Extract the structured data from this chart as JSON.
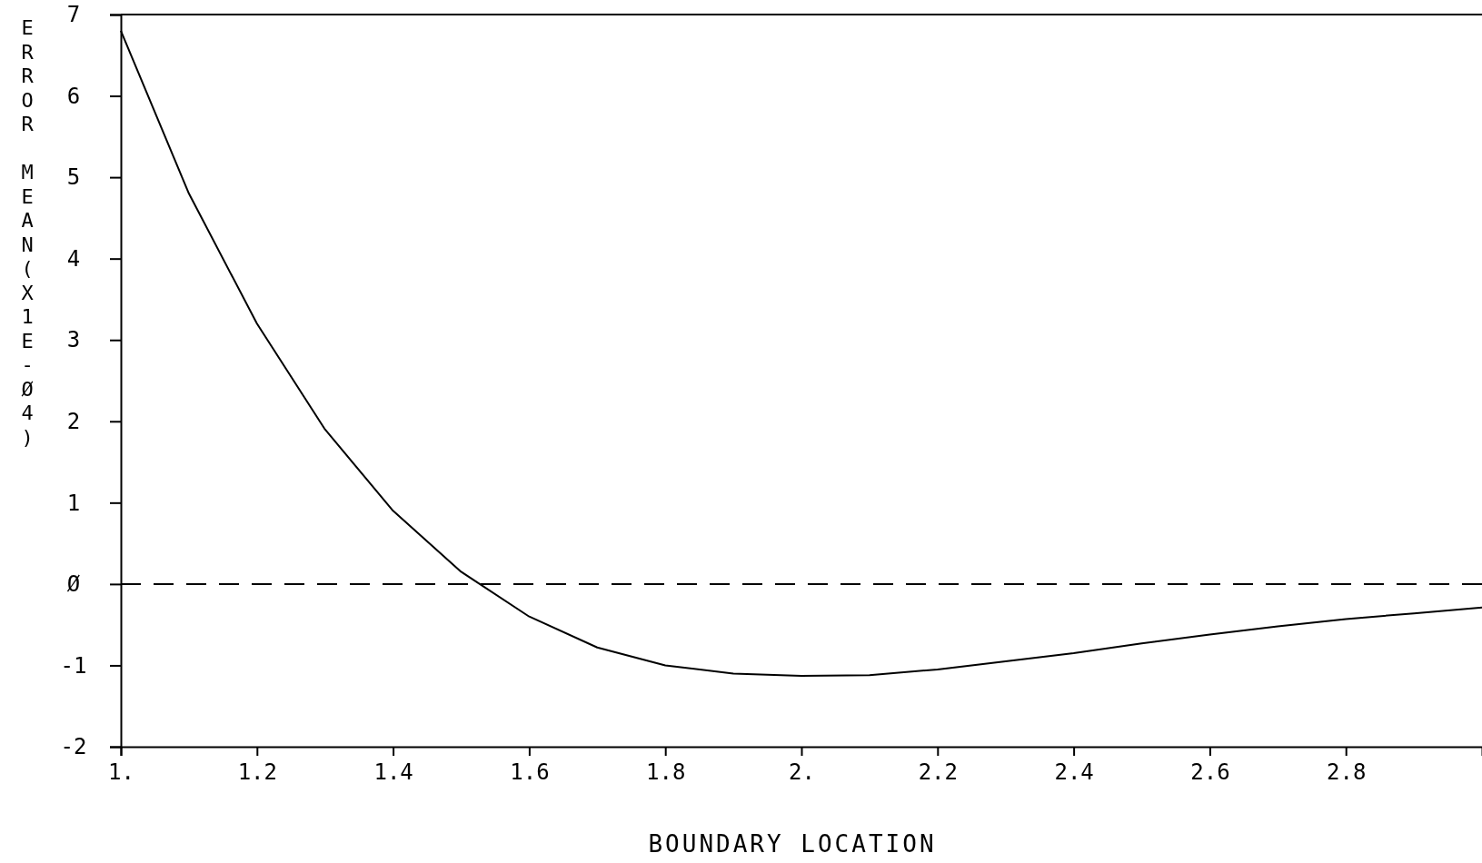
{
  "chart_data": {
    "type": "line",
    "xlabel": "BOUNDARY LOCATION",
    "ylabel": "ERROR MEAN(X1E-Ø4)",
    "x": [
      1.0,
      1.1,
      1.2,
      1.3,
      1.4,
      1.5,
      1.6,
      1.7,
      1.8,
      1.9,
      2.0,
      2.1,
      2.2,
      2.3,
      2.4,
      2.5,
      2.6,
      2.7,
      2.8,
      2.9,
      3.0
    ],
    "series": [
      {
        "color": "#000000",
        "values": [
          6.8,
          4.8,
          3.2,
          1.9,
          0.9,
          0.15,
          -0.4,
          -0.78,
          -1.0,
          -1.1,
          -1.13,
          -1.12,
          -1.05,
          -0.95,
          -0.85,
          -0.73,
          -0.62,
          -0.52,
          -0.43,
          -0.36,
          -0.29
        ]
      }
    ],
    "xlim": [
      1,
      3
    ],
    "xticks": [
      {
        "value": 1,
        "label": "1."
      },
      1.2,
      1.4,
      1.6,
      1.8,
      {
        "value": 2,
        "label": "2."
      },
      2.2,
      2.4,
      2.6,
      2.8
    ],
    "ylim": [
      -2,
      7
    ],
    "yticks": [
      -2,
      -1,
      {
        "value": 0,
        "label": "Ø"
      },
      1,
      2,
      3,
      4,
      5,
      6,
      7
    ],
    "ref_lines": [
      {
        "axis": "y",
        "value": 0,
        "line_style": "dashed",
        "color": "#000000"
      }
    ],
    "grid": false,
    "marker": "none",
    "line_style": "solid"
  }
}
